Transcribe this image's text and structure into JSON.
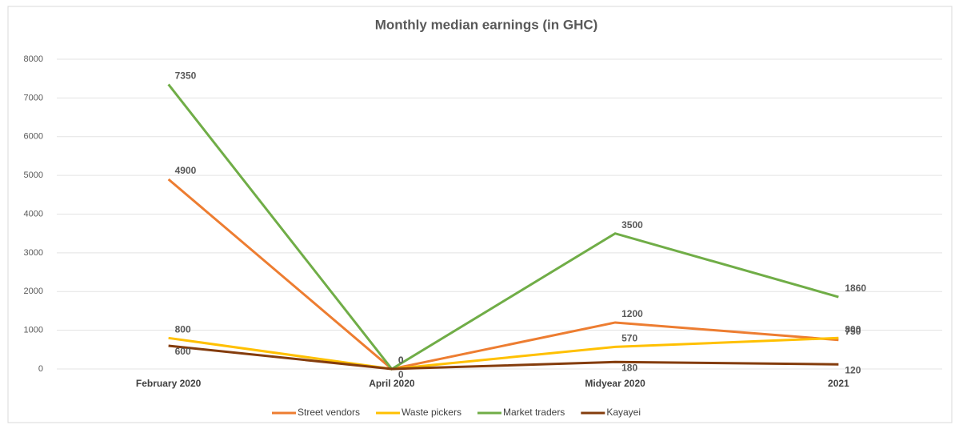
{
  "chart_data": {
    "type": "line",
    "title": "Monthly median earnings (in GHC)",
    "categories": [
      "February 2020",
      "April 2020",
      "Midyear 2020",
      "2021"
    ],
    "series": [
      {
        "name": "Street vendors",
        "color": "#ed7d31",
        "values": [
          4900,
          0,
          1200,
          750
        ]
      },
      {
        "name": "Waste pickers",
        "color": "#ffc000",
        "values": [
          800,
          0,
          570,
          800
        ]
      },
      {
        "name": "Market traders",
        "color": "#70ad47",
        "values": [
          7350,
          0,
          3500,
          1860
        ]
      },
      {
        "name": "Kayayei",
        "color": "#843c0c",
        "values": [
          600,
          0,
          180,
          120
        ]
      }
    ],
    "ylim": [
      0,
      8000
    ],
    "yticks": [
      0,
      1000,
      2000,
      3000,
      4000,
      5000,
      6000,
      7000,
      8000
    ],
    "grid": true
  }
}
